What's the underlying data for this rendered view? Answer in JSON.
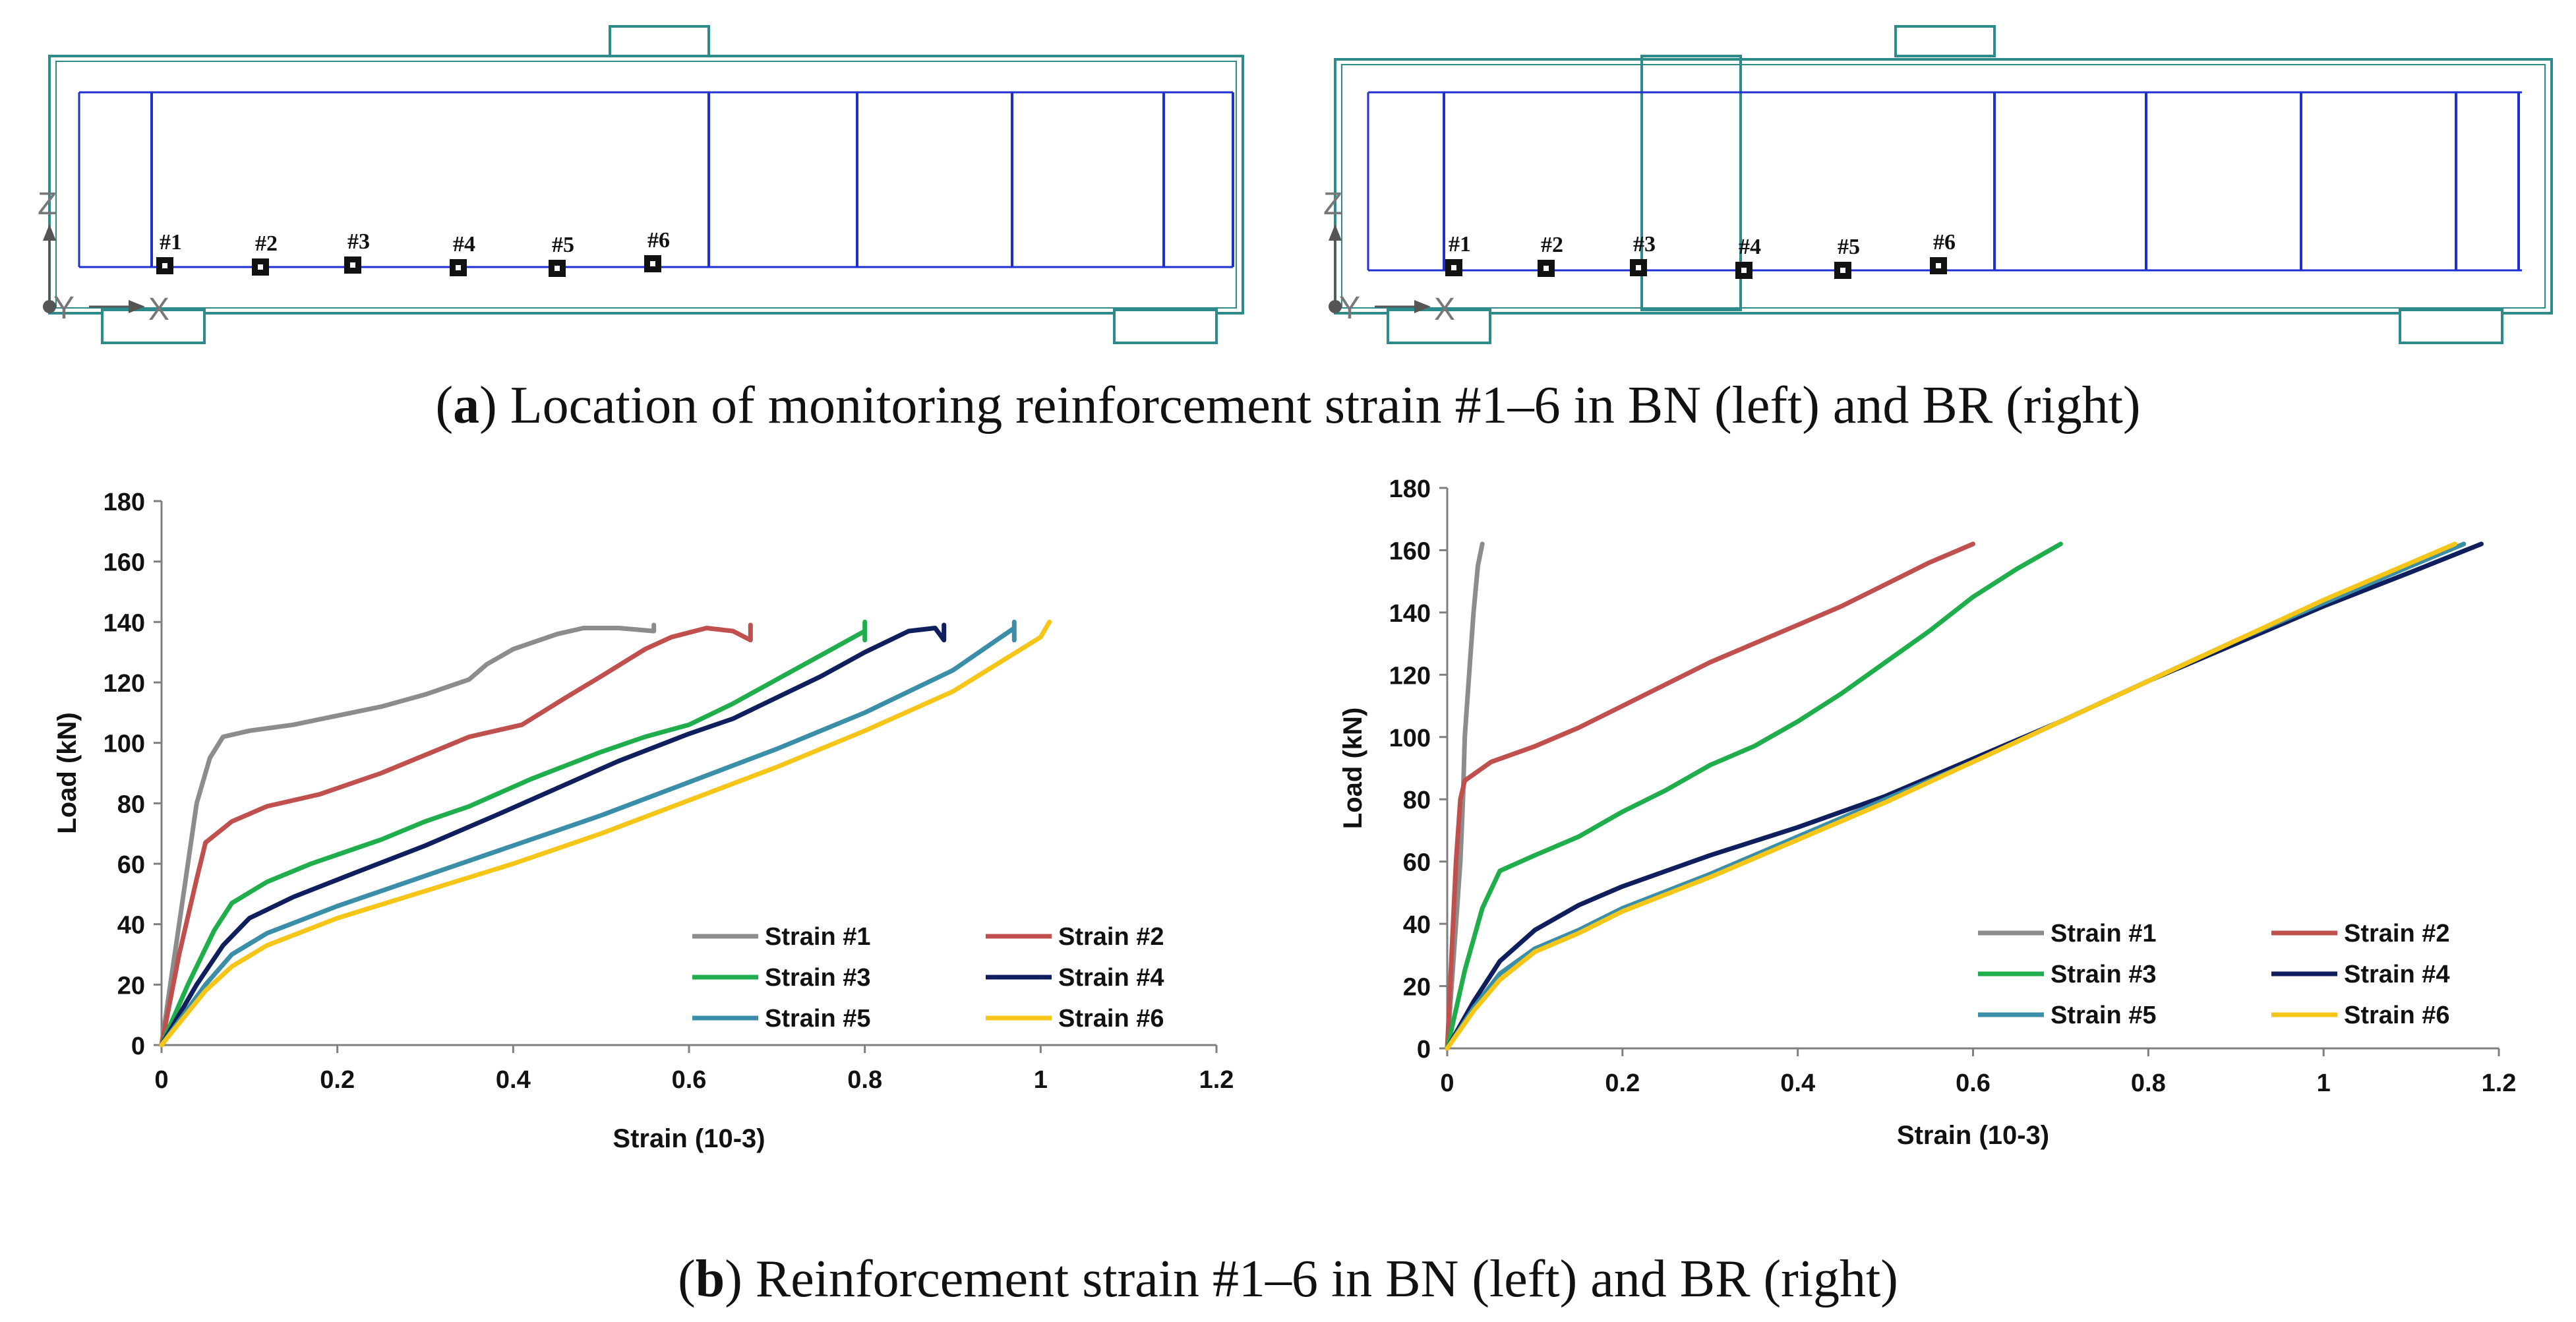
{
  "captions": {
    "a": {
      "label": "a",
      "text": "Location of monitoring reinforcement strain #1–6 in BN (left) and BR (right)"
    },
    "b": {
      "label": "b",
      "text": "Reinforcement strain #1–6 in BN (left) and BR (right)"
    }
  },
  "beam_diagrams": [
    {
      "name": "BN",
      "axes": {
        "z": "Z",
        "y": "Y",
        "x": "X"
      },
      "markers": [
        "#1",
        "#2",
        "#3",
        "#4",
        "#5",
        "#6"
      ]
    },
    {
      "name": "BR",
      "axes": {
        "z": "Z",
        "y": "Y",
        "x": "X"
      },
      "markers": [
        "#1",
        "#2",
        "#3",
        "#4",
        "#5",
        "#6"
      ]
    }
  ],
  "colors": {
    "frame": "#2e8b8b",
    "rebar": "#1f2fd0",
    "strain1": "#8c8c8c",
    "strain2": "#c0504d",
    "strain3": "#1fae4b",
    "strain4": "#0f1f5e",
    "strain5": "#3a8ea8",
    "strain6": "#f5c518",
    "axis": "#7f7f7f"
  },
  "chart_data": [
    {
      "type": "line",
      "title": "BN",
      "xlabel": "Strain (10-3)",
      "ylabel": "Load (kN)",
      "xlim": [
        0,
        1.2
      ],
      "ylim": [
        0,
        180
      ],
      "xticks": [
        "0",
        "0.2",
        "0.4",
        "0.6",
        "0.8",
        "1",
        "1.2"
      ],
      "yticks": [
        "0",
        "20",
        "40",
        "60",
        "80",
        "100",
        "120",
        "140",
        "160",
        "180"
      ],
      "series": [
        {
          "name": "Strain #1",
          "color": "#8c8c8c",
          "points": [
            [
              0,
              0
            ],
            [
              0.01,
              20
            ],
            [
              0.02,
              40
            ],
            [
              0.03,
              60
            ],
            [
              0.04,
              80
            ],
            [
              0.055,
              95
            ],
            [
              0.07,
              102
            ],
            [
              0.1,
              104
            ],
            [
              0.15,
              106
            ],
            [
              0.2,
              109
            ],
            [
              0.25,
              112
            ],
            [
              0.3,
              116
            ],
            [
              0.35,
              121
            ],
            [
              0.37,
              126
            ],
            [
              0.4,
              131
            ],
            [
              0.45,
              136
            ],
            [
              0.48,
              138
            ],
            [
              0.52,
              138
            ],
            [
              0.56,
              137
            ],
            [
              0.56,
              139
            ]
          ]
        },
        {
          "name": "Strain #2",
          "color": "#c0504d",
          "points": [
            [
              0,
              0
            ],
            [
              0.02,
              30
            ],
            [
              0.04,
              55
            ],
            [
              0.05,
              67
            ],
            [
              0.08,
              74
            ],
            [
              0.12,
              79
            ],
            [
              0.18,
              83
            ],
            [
              0.25,
              90
            ],
            [
              0.3,
              96
            ],
            [
              0.35,
              102
            ],
            [
              0.41,
              106
            ],
            [
              0.46,
              115
            ],
            [
              0.5,
              122
            ],
            [
              0.55,
              131
            ],
            [
              0.58,
              135
            ],
            [
              0.62,
              138
            ],
            [
              0.65,
              137
            ],
            [
              0.67,
              134
            ],
            [
              0.67,
              139
            ]
          ]
        },
        {
          "name": "Strain #3",
          "color": "#1fae4b",
          "points": [
            [
              0,
              0
            ],
            [
              0.03,
              20
            ],
            [
              0.06,
              38
            ],
            [
              0.08,
              47
            ],
            [
              0.12,
              54
            ],
            [
              0.17,
              60
            ],
            [
              0.25,
              68
            ],
            [
              0.3,
              74
            ],
            [
              0.35,
              79
            ],
            [
              0.42,
              88
            ],
            [
              0.5,
              97
            ],
            [
              0.55,
              102
            ],
            [
              0.6,
              106
            ],
            [
              0.65,
              113
            ],
            [
              0.7,
              121
            ],
            [
              0.75,
              129
            ],
            [
              0.8,
              137
            ],
            [
              0.8,
              134
            ],
            [
              0.8,
              140
            ]
          ]
        },
        {
          "name": "Strain #4",
          "color": "#0f1f5e",
          "points": [
            [
              0,
              0
            ],
            [
              0.04,
              20
            ],
            [
              0.07,
              33
            ],
            [
              0.1,
              42
            ],
            [
              0.15,
              49
            ],
            [
              0.22,
              57
            ],
            [
              0.3,
              66
            ],
            [
              0.38,
              76
            ],
            [
              0.45,
              85
            ],
            [
              0.52,
              94
            ],
            [
              0.6,
              103
            ],
            [
              0.65,
              108
            ],
            [
              0.7,
              115
            ],
            [
              0.75,
              122
            ],
            [
              0.8,
              130
            ],
            [
              0.85,
              137
            ],
            [
              0.88,
              138
            ],
            [
              0.89,
              134
            ],
            [
              0.89,
              139
            ]
          ]
        },
        {
          "name": "Strain #5",
          "color": "#3a8ea8",
          "points": [
            [
              0,
              0
            ],
            [
              0.05,
              20
            ],
            [
              0.08,
              30
            ],
            [
              0.12,
              37
            ],
            [
              0.2,
              46
            ],
            [
              0.3,
              56
            ],
            [
              0.4,
              66
            ],
            [
              0.5,
              76
            ],
            [
              0.6,
              87
            ],
            [
              0.7,
              98
            ],
            [
              0.8,
              110
            ],
            [
              0.9,
              124
            ],
            [
              0.95,
              134
            ],
            [
              0.97,
              138
            ],
            [
              0.97,
              134
            ],
            [
              0.97,
              140
            ]
          ]
        },
        {
          "name": "Strain #6",
          "color": "#f5c518",
          "points": [
            [
              0,
              0
            ],
            [
              0.05,
              18
            ],
            [
              0.08,
              26
            ],
            [
              0.12,
              33
            ],
            [
              0.2,
              42
            ],
            [
              0.3,
              51
            ],
            [
              0.4,
              60
            ],
            [
              0.5,
              70
            ],
            [
              0.6,
              81
            ],
            [
              0.7,
              92
            ],
            [
              0.8,
              104
            ],
            [
              0.9,
              117
            ],
            [
              0.95,
              126
            ],
            [
              1.0,
              135
            ],
            [
              1.01,
              140
            ]
          ]
        }
      ]
    },
    {
      "type": "line",
      "title": "BR",
      "xlabel": "Strain (10-3)",
      "ylabel": "Load (kN)",
      "xlim": [
        0,
        1.2
      ],
      "ylim": [
        0,
        180
      ],
      "xticks": [
        "0",
        "0.2",
        "0.4",
        "0.6",
        "0.8",
        "1",
        "1.2"
      ],
      "yticks": [
        "0",
        "20",
        "40",
        "60",
        "80",
        "100",
        "120",
        "140",
        "160",
        "180"
      ],
      "series": [
        {
          "name": "Strain #1",
          "color": "#8c8c8c",
          "points": [
            [
              0,
              0
            ],
            [
              0.005,
              20
            ],
            [
              0.01,
              40
            ],
            [
              0.015,
              60
            ],
            [
              0.018,
              80
            ],
            [
              0.02,
              100
            ],
            [
              0.025,
              120
            ],
            [
              0.03,
              140
            ],
            [
              0.035,
              155
            ],
            [
              0.04,
              162
            ]
          ]
        },
        {
          "name": "Strain #2",
          "color": "#c0504d",
          "points": [
            [
              0,
              0
            ],
            [
              0.005,
              30
            ],
            [
              0.01,
              60
            ],
            [
              0.015,
              80
            ],
            [
              0.02,
              86
            ],
            [
              0.05,
              92
            ],
            [
              0.1,
              97
            ],
            [
              0.15,
              103
            ],
            [
              0.2,
              110
            ],
            [
              0.25,
              117
            ],
            [
              0.3,
              124
            ],
            [
              0.35,
              130
            ],
            [
              0.4,
              136
            ],
            [
              0.45,
              142
            ],
            [
              0.5,
              149
            ],
            [
              0.55,
              156
            ],
            [
              0.6,
              162
            ]
          ]
        },
        {
          "name": "Strain #3",
          "color": "#1fae4b",
          "points": [
            [
              0,
              0
            ],
            [
              0.02,
              25
            ],
            [
              0.04,
              45
            ],
            [
              0.06,
              57
            ],
            [
              0.1,
              62
            ],
            [
              0.15,
              68
            ],
            [
              0.2,
              76
            ],
            [
              0.25,
              83
            ],
            [
              0.3,
              91
            ],
            [
              0.35,
              97
            ],
            [
              0.4,
              105
            ],
            [
              0.45,
              114
            ],
            [
              0.5,
              124
            ],
            [
              0.55,
              134
            ],
            [
              0.6,
              145
            ],
            [
              0.65,
              154
            ],
            [
              0.7,
              162
            ]
          ]
        },
        {
          "name": "Strain #4",
          "color": "#0f1f5e",
          "points": [
            [
              0,
              0
            ],
            [
              0.03,
              15
            ],
            [
              0.06,
              28
            ],
            [
              0.1,
              38
            ],
            [
              0.15,
              46
            ],
            [
              0.2,
              52
            ],
            [
              0.3,
              62
            ],
            [
              0.4,
              71
            ],
            [
              0.5,
              81
            ],
            [
              0.6,
              93
            ],
            [
              0.7,
              105
            ],
            [
              0.8,
              118
            ],
            [
              0.9,
              130
            ],
            [
              1.0,
              142
            ],
            [
              1.1,
              153
            ],
            [
              1.18,
              162
            ]
          ]
        },
        {
          "name": "Strain #5",
          "color": "#3a8ea8",
          "points": [
            [
              0,
              0
            ],
            [
              0.03,
              13
            ],
            [
              0.06,
              24
            ],
            [
              0.1,
              32
            ],
            [
              0.15,
              38
            ],
            [
              0.2,
              45
            ],
            [
              0.3,
              56
            ],
            [
              0.4,
              68
            ],
            [
              0.5,
              80
            ],
            [
              0.6,
              92
            ],
            [
              0.7,
              105
            ],
            [
              0.8,
              118
            ],
            [
              0.9,
              131
            ],
            [
              1.0,
              143
            ],
            [
              1.1,
              155
            ],
            [
              1.16,
              162
            ]
          ]
        },
        {
          "name": "Strain #6",
          "color": "#f5c518",
          "points": [
            [
              0,
              0
            ],
            [
              0.03,
              12
            ],
            [
              0.06,
              22
            ],
            [
              0.1,
              31
            ],
            [
              0.15,
              37
            ],
            [
              0.2,
              44
            ],
            [
              0.3,
              55
            ],
            [
              0.4,
              67
            ],
            [
              0.5,
              79
            ],
            [
              0.6,
              92
            ],
            [
              0.7,
              105
            ],
            [
              0.8,
              118
            ],
            [
              0.9,
              131
            ],
            [
              1.0,
              144
            ],
            [
              1.1,
              156
            ],
            [
              1.15,
              162
            ]
          ]
        }
      ]
    }
  ]
}
